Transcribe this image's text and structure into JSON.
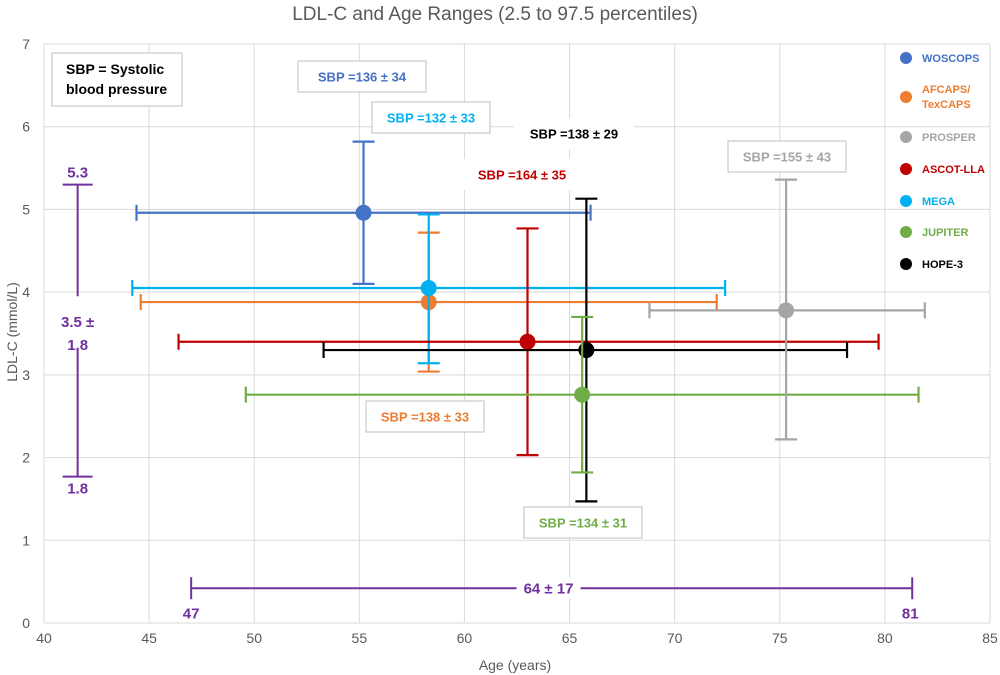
{
  "chart_data": {
    "type": "scatter",
    "title": "LDL-C and Age Ranges (2.5 to 97.5 percentiles)",
    "xlabel": "Age (years)",
    "ylabel": "LDL-C (mmol/L)",
    "xlim": [
      40,
      85
    ],
    "ylim": [
      0,
      7
    ],
    "x_ticks": [
      "40",
      "45",
      "50",
      "55",
      "60",
      "65",
      "70",
      "75",
      "80",
      "85"
    ],
    "y_ticks": [
      "0",
      "1",
      "2",
      "3",
      "4",
      "5",
      "6",
      "7"
    ],
    "grid": true,
    "legend_position": "right",
    "series": [
      {
        "name": "WOSCOPS",
        "color": "#4472c4",
        "x": 55.2,
        "y": 4.96,
        "x_low": 44.4,
        "x_high": 66.0,
        "y_low": 4.1,
        "y_high": 5.82,
        "sbp": "SBP =136 ± 34"
      },
      {
        "name": "AFCAPS/ TexCAPS",
        "color": "#ed7d31",
        "x": 58.3,
        "y": 3.88,
        "x_low": 44.6,
        "x_high": 72.0,
        "y_low": 3.04,
        "y_high": 4.72,
        "sbp": "SBP =138 ± 33"
      },
      {
        "name": "PROSPER",
        "color": "#a5a5a5",
        "x": 75.3,
        "y": 3.78,
        "x_low": 68.8,
        "x_high": 81.9,
        "y_low": 2.22,
        "y_high": 5.36,
        "sbp": "SBP =155 ± 43"
      },
      {
        "name": "ASCOT-LLA",
        "color": "#c00000",
        "x": 63.0,
        "y": 3.4,
        "x_low": 46.4,
        "x_high": 79.7,
        "y_low": 2.03,
        "y_high": 4.77,
        "sbp": "SBP =164 ± 35"
      },
      {
        "name": "MEGA",
        "color": "#00b0f0",
        "x": 58.3,
        "y": 4.05,
        "x_low": 44.2,
        "x_high": 72.4,
        "y_low": 3.14,
        "y_high": 4.94,
        "sbp": "SBP =132 ± 33"
      },
      {
        "name": "JUPITER",
        "color": "#70ad47",
        "x": 65.6,
        "y": 2.76,
        "x_low": 49.6,
        "x_high": 81.6,
        "y_low": 1.82,
        "y_high": 3.7,
        "sbp": "SBP =134 ± 31"
      },
      {
        "name": "HOPE-3",
        "color": "#000000",
        "x": 65.8,
        "y": 3.3,
        "x_low": 53.3,
        "x_high": 78.2,
        "y_low": 1.47,
        "y_high": 5.13,
        "sbp": "SBP =138 ± 29"
      }
    ],
    "summary_ranges": {
      "color": "#7030a0",
      "ldl": {
        "x": 41.6,
        "low": 1.77,
        "high": 5.3,
        "label_high": "5.3",
        "label_low": "1.8",
        "label_mid_1": "3.5 ±",
        "label_mid_2": "1.8"
      },
      "age": {
        "y": 0.42,
        "low": 47,
        "high": 81.3,
        "label_low": "47",
        "label_high": "81",
        "label_mid": "64 ± 17"
      }
    },
    "note": {
      "line1": "SBP = Systolic",
      "line2": "blood pressure"
    }
  }
}
